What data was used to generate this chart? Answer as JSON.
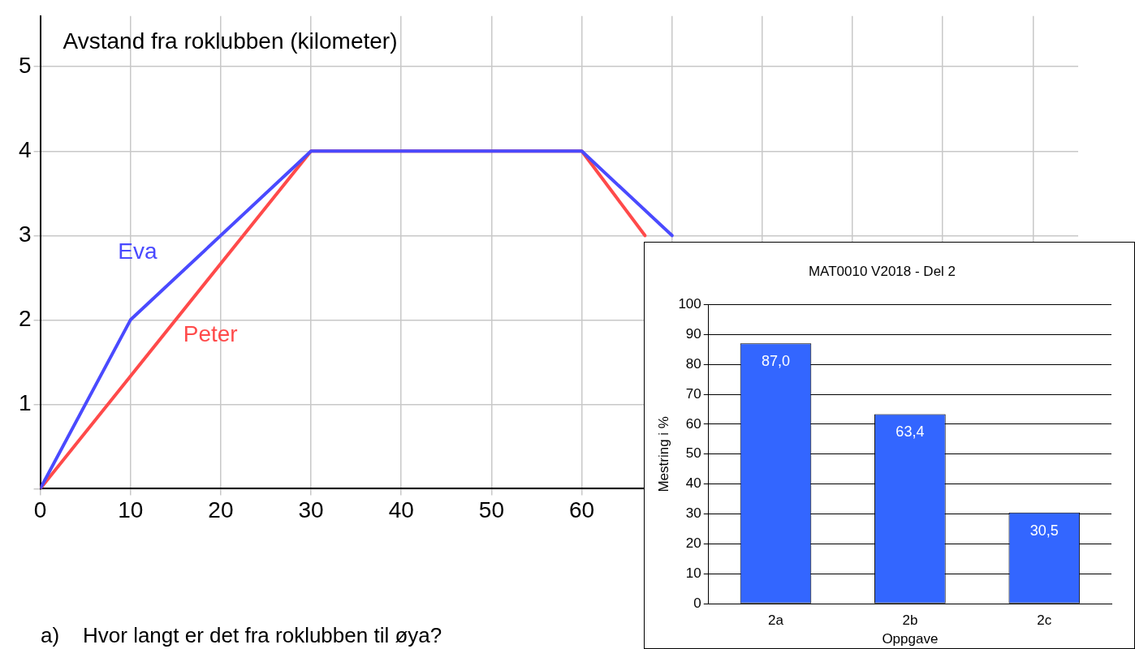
{
  "chart_data": [
    {
      "type": "line",
      "title": "Avstand fra roklubben (kilometer)",
      "annotations": [
        "a)    Hvor langt er det fra roklubben til øya?"
      ],
      "xlim": [
        0,
        115
      ],
      "xticks": [
        0,
        10,
        20,
        30,
        40,
        50,
        60,
        {
          "value": 70,
          "label": null
        },
        {
          "value": 80,
          "label": null
        },
        {
          "value": 90,
          "label": null
        },
        {
          "value": 100,
          "label": null
        },
        {
          "value": 110,
          "label": null
        }
      ],
      "ylim": [
        0,
        5.6
      ],
      "yticks": [
        {
          "value": 0,
          "label": null
        },
        1,
        2,
        3,
        4,
        5
      ],
      "grid": true,
      "legend": false,
      "marker": "none",
      "line_style": "solid",
      "series": [
        {
          "name": "Eva",
          "color": "#4a4aff",
          "x": [
            0,
            10,
            30,
            60,
            70
          ],
          "values": [
            0,
            2,
            4,
            4,
            3
          ]
        },
        {
          "name": "Peter",
          "color": "#ff4a4a",
          "x": [
            0,
            30,
            60,
            67
          ],
          "values": [
            0,
            4,
            4,
            3
          ]
        }
      ]
    },
    {
      "type": "bar",
      "title": "MAT0010 V2018 - Del 2",
      "xlabel": "Oppgave",
      "ylabel": "Mestring i %",
      "categories": [
        "2a",
        "2b",
        "2c"
      ],
      "values": [
        87.0,
        63.4,
        30.5
      ],
      "value_labels": [
        "87,0",
        "63,4",
        "30,5"
      ],
      "color": "#3366ff",
      "ylim": [
        0,
        100
      ],
      "yticks": [
        0,
        10,
        20,
        30,
        40,
        50,
        60,
        70,
        80,
        90,
        100
      ],
      "grid": "y",
      "legend": false
    }
  ]
}
